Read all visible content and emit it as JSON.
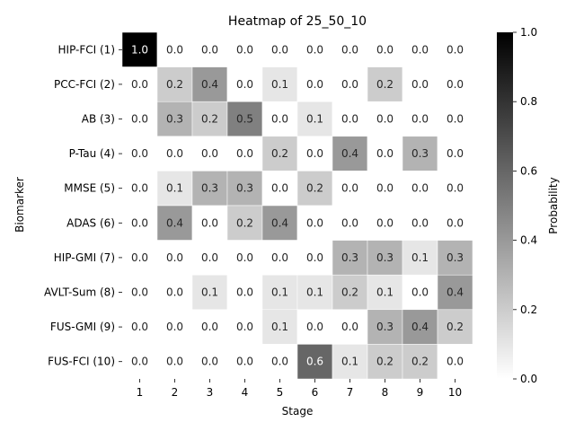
{
  "chart_data": {
    "type": "heatmap",
    "title": "Heatmap of 25_50_10",
    "xlabel": "Stage",
    "ylabel": "Biomarker",
    "x_categories": [
      "1",
      "2",
      "3",
      "4",
      "5",
      "6",
      "7",
      "8",
      "9",
      "10"
    ],
    "y_categories": [
      "HIP-FCI (1)",
      "PCC-FCI (2)",
      "AB (3)",
      "P-Tau (4)",
      "MMSE (5)",
      "ADAS (6)",
      "HIP-GMI (7)",
      "AVLT-Sum (8)",
      "FUS-GMI (9)",
      "FUS-FCI (10)"
    ],
    "values": [
      [
        1.0,
        0.0,
        0.0,
        0.0,
        0.0,
        0.0,
        0.0,
        0.0,
        0.0,
        0.0
      ],
      [
        0.0,
        0.2,
        0.4,
        0.0,
        0.1,
        0.0,
        0.0,
        0.2,
        0.0,
        0.0
      ],
      [
        0.0,
        0.3,
        0.2,
        0.5,
        0.0,
        0.1,
        0.0,
        0.0,
        0.0,
        0.0
      ],
      [
        0.0,
        0.0,
        0.0,
        0.0,
        0.2,
        0.0,
        0.4,
        0.0,
        0.3,
        0.0
      ],
      [
        0.0,
        0.1,
        0.3,
        0.3,
        0.0,
        0.2,
        0.0,
        0.0,
        0.0,
        0.0
      ],
      [
        0.0,
        0.4,
        0.0,
        0.2,
        0.4,
        0.0,
        0.0,
        0.0,
        0.0,
        0.0
      ],
      [
        0.0,
        0.0,
        0.0,
        0.0,
        0.0,
        0.0,
        0.3,
        0.3,
        0.1,
        0.3
      ],
      [
        0.0,
        0.0,
        0.1,
        0.0,
        0.1,
        0.1,
        0.2,
        0.1,
        0.0,
        0.4
      ],
      [
        0.0,
        0.0,
        0.0,
        0.0,
        0.1,
        0.0,
        0.0,
        0.3,
        0.4,
        0.2
      ],
      [
        0.0,
        0.0,
        0.0,
        0.0,
        0.0,
        0.6,
        0.1,
        0.2,
        0.2,
        0.0
      ]
    ],
    "colorbar": {
      "label": "Probability",
      "range": [
        0.0,
        1.0
      ],
      "ticks": [
        "0.0",
        "0.2",
        "0.4",
        "0.6",
        "0.8",
        "1.0"
      ]
    },
    "colormap": "Greys"
  }
}
